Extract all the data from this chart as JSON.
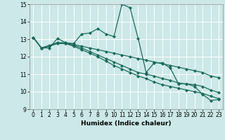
{
  "title": "",
  "xlabel": "Humidex (Indice chaleur)",
  "ylabel": "",
  "bg_color": "#cce8e8",
  "grid_color": "#ffffff",
  "line_color": "#1a6b5a",
  "xlim": [
    -0.5,
    23.5
  ],
  "ylim": [
    9,
    15
  ],
  "xticks": [
    0,
    1,
    2,
    3,
    4,
    5,
    6,
    7,
    8,
    9,
    10,
    11,
    12,
    13,
    14,
    15,
    16,
    17,
    18,
    19,
    20,
    21,
    22,
    23
  ],
  "yticks": [
    9,
    10,
    11,
    12,
    13,
    14,
    15
  ],
  "series": [
    [
      13.1,
      12.5,
      12.5,
      13.05,
      12.8,
      12.75,
      13.3,
      13.35,
      13.6,
      13.3,
      13.15,
      15.0,
      14.8,
      13.05,
      11.1,
      11.65,
      11.65,
      11.35,
      10.45,
      10.45,
      10.3,
      9.85,
      9.5,
      9.55
    ],
    [
      13.1,
      12.5,
      12.65,
      12.8,
      12.8,
      12.7,
      12.6,
      12.5,
      12.4,
      12.3,
      12.2,
      12.1,
      12.0,
      11.9,
      11.8,
      11.7,
      11.6,
      11.5,
      11.4,
      11.3,
      11.2,
      11.1,
      10.9,
      10.8
    ],
    [
      13.1,
      12.5,
      12.6,
      12.8,
      12.75,
      12.65,
      12.5,
      12.3,
      12.1,
      11.9,
      11.7,
      11.5,
      11.3,
      11.1,
      11.0,
      10.9,
      10.75,
      10.65,
      10.5,
      10.45,
      10.4,
      10.3,
      10.1,
      9.95
    ],
    [
      13.1,
      12.5,
      12.6,
      12.75,
      12.75,
      12.6,
      12.4,
      12.2,
      12.0,
      11.75,
      11.5,
      11.3,
      11.1,
      10.9,
      10.75,
      10.55,
      10.4,
      10.3,
      10.2,
      10.1,
      10.0,
      9.9,
      9.75,
      9.6
    ]
  ],
  "marker": "D",
  "marker_size": 2,
  "linewidth": 0.9
}
